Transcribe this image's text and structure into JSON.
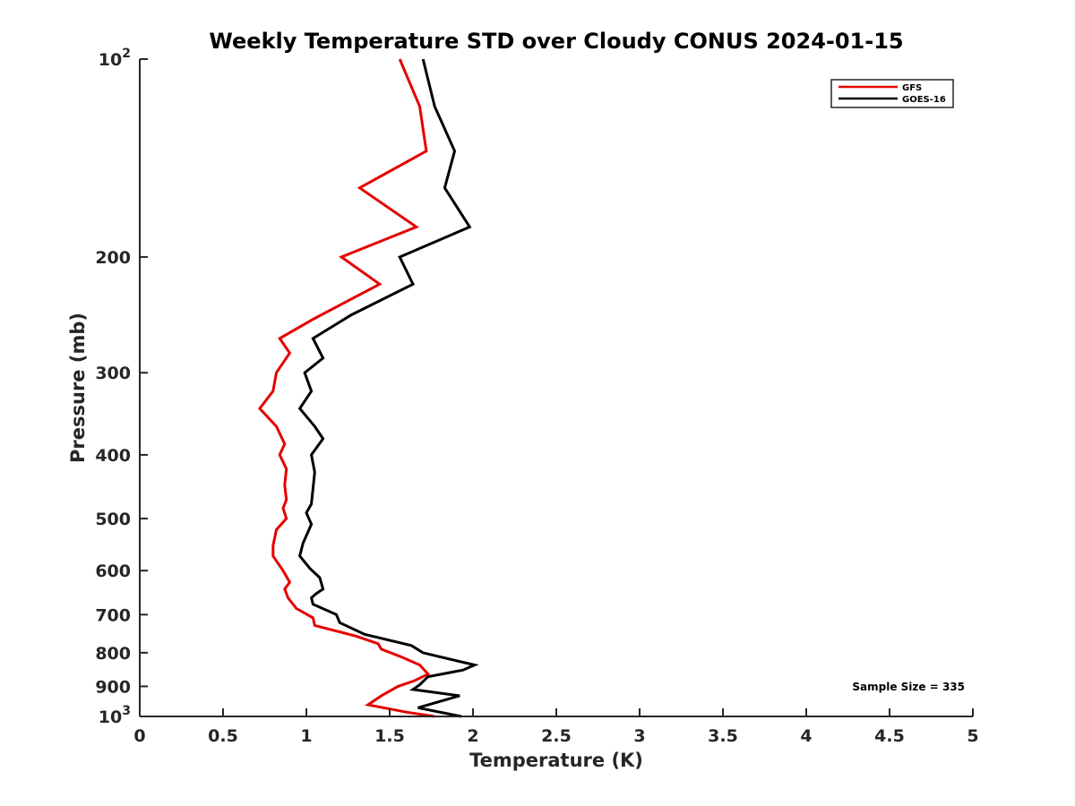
{
  "chart_data": {
    "type": "line",
    "title": "Weekly Temperature STD over Cloudy CONUS 2024-01-15",
    "xlabel": "Temperature (K)",
    "ylabel": "Pressure (mb)",
    "xlim": [
      0,
      5
    ],
    "ylim": [
      100,
      1000
    ],
    "y_scale": "log",
    "y_reversed": true,
    "grid": false,
    "legend_position": "top-right",
    "x_ticks": [
      {
        "value": 0,
        "label": "0"
      },
      {
        "value": 0.5,
        "label": "0.5"
      },
      {
        "value": 1,
        "label": "1"
      },
      {
        "value": 1.5,
        "label": "1.5"
      },
      {
        "value": 2,
        "label": "2"
      },
      {
        "value": 2.5,
        "label": "2.5"
      },
      {
        "value": 3,
        "label": "3"
      },
      {
        "value": 3.5,
        "label": "3.5"
      },
      {
        "value": 4,
        "label": "4"
      },
      {
        "value": 4.5,
        "label": "4.5"
      },
      {
        "value": 5,
        "label": "5"
      }
    ],
    "y_ticks": [
      {
        "value": 100,
        "base": "10",
        "exp": "2"
      },
      {
        "value": 200,
        "base": "200",
        "exp": ""
      },
      {
        "value": 300,
        "base": "300",
        "exp": ""
      },
      {
        "value": 400,
        "base": "400",
        "exp": ""
      },
      {
        "value": 500,
        "base": "500",
        "exp": ""
      },
      {
        "value": 600,
        "base": "600",
        "exp": ""
      },
      {
        "value": 700,
        "base": "700",
        "exp": ""
      },
      {
        "value": 800,
        "base": "800",
        "exp": ""
      },
      {
        "value": 900,
        "base": "900",
        "exp": ""
      },
      {
        "value": 1000,
        "base": "10",
        "exp": "3"
      }
    ],
    "series": [
      {
        "name": "GFS",
        "color": "#e60000",
        "points": [
          [
            1.56,
            100
          ],
          [
            1.68,
            118
          ],
          [
            1.72,
            138
          ],
          [
            1.32,
            157
          ],
          [
            1.66,
            180
          ],
          [
            1.21,
            200
          ],
          [
            1.44,
            220
          ],
          [
            1.05,
            248
          ],
          [
            0.84,
            266
          ],
          [
            0.9,
            280
          ],
          [
            0.82,
            300
          ],
          [
            0.8,
            320
          ],
          [
            0.72,
            340
          ],
          [
            0.82,
            362
          ],
          [
            0.87,
            385
          ],
          [
            0.84,
            400
          ],
          [
            0.88,
            420
          ],
          [
            0.87,
            445
          ],
          [
            0.88,
            468
          ],
          [
            0.86,
            482
          ],
          [
            0.88,
            500
          ],
          [
            0.82,
            520
          ],
          [
            0.8,
            550
          ],
          [
            0.8,
            570
          ],
          [
            0.86,
            600
          ],
          [
            0.9,
            625
          ],
          [
            0.87,
            640
          ],
          [
            0.89,
            660
          ],
          [
            0.94,
            685
          ],
          [
            1.04,
            708
          ],
          [
            1.05,
            727
          ],
          [
            1.3,
            755
          ],
          [
            1.43,
            775
          ],
          [
            1.45,
            790
          ],
          [
            1.56,
            810
          ],
          [
            1.68,
            835
          ],
          [
            1.73,
            862
          ],
          [
            1.65,
            882
          ],
          [
            1.55,
            900
          ],
          [
            1.45,
            930
          ],
          [
            1.37,
            960
          ],
          [
            1.6,
            985
          ],
          [
            1.77,
            1000
          ]
        ]
      },
      {
        "name": "GOES-16",
        "color": "#000000",
        "points": [
          [
            1.7,
            100
          ],
          [
            1.77,
            118
          ],
          [
            1.89,
            138
          ],
          [
            1.83,
            157
          ],
          [
            1.98,
            180
          ],
          [
            1.56,
            200
          ],
          [
            1.64,
            220
          ],
          [
            1.27,
            245
          ],
          [
            1.04,
            266
          ],
          [
            1.1,
            285
          ],
          [
            0.99,
            300
          ],
          [
            1.03,
            320
          ],
          [
            0.96,
            340
          ],
          [
            1.05,
            362
          ],
          [
            1.1,
            378
          ],
          [
            1.03,
            400
          ],
          [
            1.05,
            425
          ],
          [
            1.04,
            450
          ],
          [
            1.03,
            475
          ],
          [
            1.0,
            490
          ],
          [
            1.03,
            510
          ],
          [
            0.98,
            545
          ],
          [
            0.96,
            570
          ],
          [
            1.02,
            595
          ],
          [
            1.08,
            615
          ],
          [
            1.1,
            640
          ],
          [
            1.06,
            650
          ],
          [
            1.03,
            660
          ],
          [
            1.04,
            675
          ],
          [
            1.18,
            700
          ],
          [
            1.2,
            720
          ],
          [
            1.35,
            750
          ],
          [
            1.63,
            780
          ],
          [
            1.7,
            800
          ],
          [
            1.86,
            818
          ],
          [
            2.01,
            835
          ],
          [
            1.94,
            850
          ],
          [
            1.73,
            870
          ],
          [
            1.68,
            895
          ],
          [
            1.64,
            910
          ],
          [
            1.92,
            930
          ],
          [
            1.67,
            970
          ],
          [
            1.93,
            1000
          ]
        ]
      }
    ],
    "annotation": "Sample Size = 335"
  }
}
